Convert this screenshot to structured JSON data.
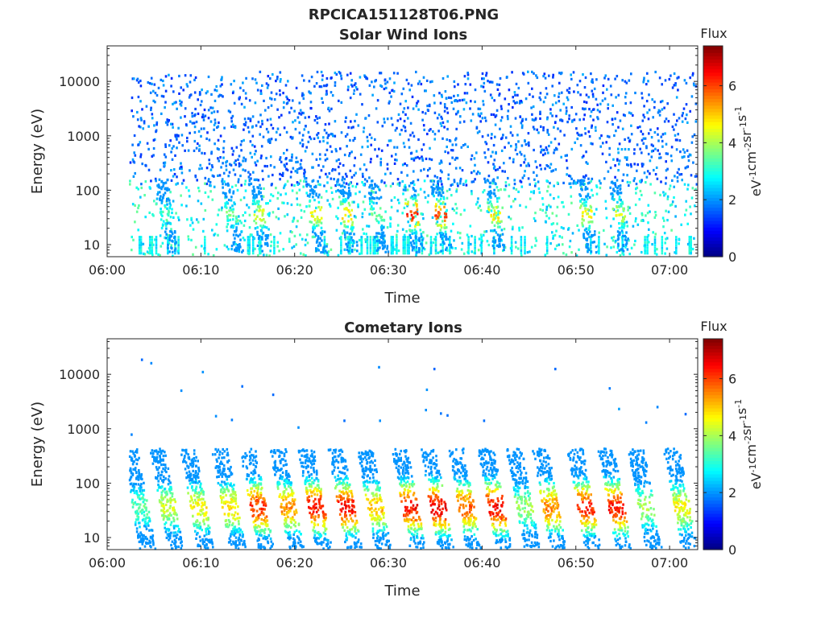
{
  "figure": {
    "title": "RPCICA151128T06.PNG"
  },
  "chart_data": [
    {
      "type": "heatmap",
      "title": "Solar Wind Ions",
      "xlabel": "Time",
      "ylabel": "Energy (eV)",
      "x_range": [
        "06:00",
        "07:03"
      ],
      "x_ticks": [
        "06:00",
        "06:10",
        "06:20",
        "06:30",
        "06:40",
        "06:50",
        "07:00"
      ],
      "y_scale": "log",
      "y_range": [
        6,
        45000
      ],
      "y_ticks": [
        10,
        100,
        1000,
        10000
      ],
      "y_tick_labels": [
        "10",
        "100",
        "1000",
        "10000"
      ],
      "colorbar": {
        "title": "Flux",
        "label_parts": [
          "eV",
          "-1",
          "cm",
          "-2",
          "sr",
          "-1",
          "s",
          "-1"
        ],
        "range": [
          0,
          7.4
        ],
        "ticks": [
          0,
          2,
          4,
          6
        ],
        "tick_labels": [
          "0",
          "2",
          "4",
          "6"
        ],
        "colormap": "jet"
      },
      "data_start_minute": 2.3,
      "data_end_minute": 62.8,
      "background_points": 1700,
      "background_level_range": [
        1.2,
        2.2
      ],
      "background_energy_range": [
        120,
        15000
      ],
      "low_energy_points": 850,
      "low_energy_level_range": [
        2.2,
        3.6
      ],
      "low_energy_range": [
        6,
        150
      ],
      "bursts": [
        {
          "t": 6.5,
          "level": 3.1
        },
        {
          "t": 13.5,
          "level": 3.5
        },
        {
          "t": 16.4,
          "level": 4.4
        },
        {
          "t": 22.5,
          "level": 4.6
        },
        {
          "t": 25.8,
          "level": 4.9
        },
        {
          "t": 29.0,
          "level": 3.6
        },
        {
          "t": 32.8,
          "level": 6.2
        },
        {
          "t": 35.8,
          "level": 5.9
        },
        {
          "t": 41.5,
          "level": 4.7
        },
        {
          "t": 51.3,
          "level": 4.5
        },
        {
          "t": 54.8,
          "level": 4.2
        }
      ]
    },
    {
      "type": "heatmap",
      "title": "Cometary Ions",
      "xlabel": "Time",
      "ylabel": "Energy (eV)",
      "x_range": [
        "06:00",
        "07:03"
      ],
      "x_ticks": [
        "06:00",
        "06:10",
        "06:20",
        "06:30",
        "06:40",
        "06:50",
        "07:00"
      ],
      "y_scale": "log",
      "y_range": [
        6,
        45000
      ],
      "y_ticks": [
        10,
        100,
        1000,
        10000
      ],
      "y_tick_labels": [
        "10",
        "100",
        "1000",
        "10000"
      ],
      "colorbar": {
        "title": "Flux",
        "label_parts": [
          "eV",
          "-1",
          "cm",
          "-2",
          "sr",
          "-1",
          "s",
          "-1"
        ],
        "range": [
          0,
          7.4
        ],
        "ticks": [
          0,
          2,
          4,
          6
        ],
        "tick_labels": [
          "0",
          "2",
          "4",
          "6"
        ],
        "colormap": "jet"
      },
      "data_start_minute": 2.3,
      "data_end_minute": 62.8,
      "sparse_points": [
        {
          "t": 2.5,
          "e": 780
        },
        {
          "t": 3.6,
          "e": 18500
        },
        {
          "t": 4.6,
          "e": 16000
        },
        {
          "t": 7.8,
          "e": 5000
        },
        {
          "t": 10.1,
          "e": 11000
        },
        {
          "t": 11.5,
          "e": 1700
        },
        {
          "t": 13.2,
          "e": 1450
        },
        {
          "t": 14.3,
          "e": 6000
        },
        {
          "t": 17.6,
          "e": 4200
        },
        {
          "t": 20.3,
          "e": 1050
        },
        {
          "t": 25.2,
          "e": 1400
        },
        {
          "t": 28.9,
          "e": 13500
        },
        {
          "t": 29.0,
          "e": 1400
        },
        {
          "t": 34.0,
          "e": 5200
        },
        {
          "t": 34.8,
          "e": 12500
        },
        {
          "t": 33.9,
          "e": 2200
        },
        {
          "t": 35.5,
          "e": 1900
        },
        {
          "t": 36.2,
          "e": 1750
        },
        {
          "t": 40.1,
          "e": 1400
        },
        {
          "t": 47.7,
          "e": 12500
        },
        {
          "t": 53.5,
          "e": 5500
        },
        {
          "t": 54.5,
          "e": 2300
        },
        {
          "t": 57.4,
          "e": 1300
        },
        {
          "t": 58.6,
          "e": 2500
        },
        {
          "t": 61.6,
          "e": 1850
        }
      ],
      "bursts": [
        {
          "t": 3.8,
          "level": 3.4
        },
        {
          "t": 6.8,
          "level": 4.2
        },
        {
          "t": 10.0,
          "level": 4.6
        },
        {
          "t": 13.4,
          "level": 4.8
        },
        {
          "t": 16.4,
          "level": 6.1
        },
        {
          "t": 19.6,
          "level": 5.4
        },
        {
          "t": 22.6,
          "level": 6.3
        },
        {
          "t": 25.8,
          "level": 6.4
        },
        {
          "t": 28.9,
          "level": 5.0
        },
        {
          "t": 32.6,
          "level": 6.4
        },
        {
          "t": 35.6,
          "level": 6.6
        },
        {
          "t": 38.6,
          "level": 5.8
        },
        {
          "t": 41.8,
          "level": 6.5
        },
        {
          "t": 44.8,
          "level": 3.9
        },
        {
          "t": 47.6,
          "level": 5.5
        },
        {
          "t": 51.3,
          "level": 6.2
        },
        {
          "t": 54.6,
          "level": 6.3
        },
        {
          "t": 57.8,
          "level": 3.9
        },
        {
          "t": 61.6,
          "level": 4.6
        }
      ]
    }
  ]
}
